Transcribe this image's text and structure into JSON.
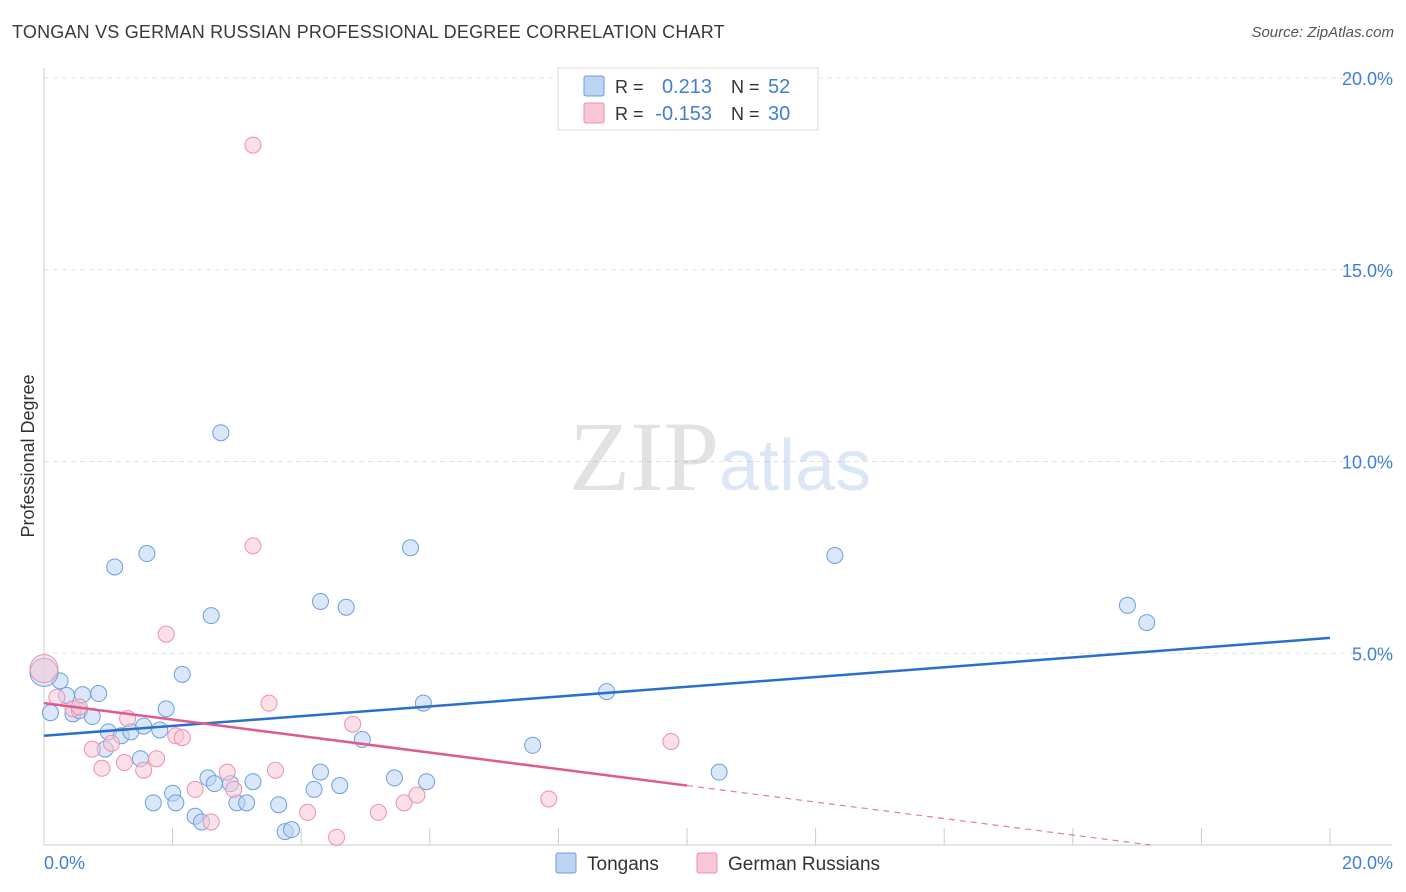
{
  "chart_data": {
    "type": "scatter",
    "title": "TONGAN VS GERMAN RUSSIAN PROFESSIONAL DEGREE CORRELATION CHART",
    "source": "Source: ZipAtlas.com",
    "xlabel": "",
    "ylabel": "Professional Degree",
    "xlim": [
      0,
      20
    ],
    "ylim": [
      0,
      20
    ],
    "x_tick_labels": [
      "0.0%",
      "20.0%"
    ],
    "y_ticks": [
      5,
      10,
      15,
      20
    ],
    "y_tick_labels": [
      "5.0%",
      "10.0%",
      "15.0%",
      "20.0%"
    ],
    "grid": true,
    "watermark": "ZIPatlas",
    "legend_stats": [
      {
        "r_label": "R =",
        "r_value": "0.213",
        "n_label": "N =",
        "n_value": "52"
      },
      {
        "r_label": "R =",
        "r_value": "-0.153",
        "n_label": "N =",
        "n_value": "30"
      }
    ],
    "series": [
      {
        "name": "Tongans",
        "color": "#6a9fe0",
        "fill": "#bcd3f2",
        "trend_color": "#2a6fcc",
        "trend": {
          "x0": 0,
          "y0": 2.85,
          "x1": 20,
          "y1": 5.4
        },
        "points": [
          [
            0.1,
            3.45
          ],
          [
            0.25,
            4.28
          ],
          [
            0.35,
            3.9
          ],
          [
            0.45,
            3.42
          ],
          [
            0.55,
            3.5
          ],
          [
            0.6,
            3.92
          ],
          [
            0.75,
            3.35
          ],
          [
            0.85,
            3.95
          ],
          [
            0.95,
            2.5
          ],
          [
            1.0,
            2.95
          ],
          [
            1.1,
            7.25
          ],
          [
            1.2,
            2.85
          ],
          [
            1.35,
            2.95
          ],
          [
            1.5,
            2.25
          ],
          [
            1.55,
            3.1
          ],
          [
            1.6,
            7.6
          ],
          [
            1.7,
            1.1
          ],
          [
            1.8,
            3.0
          ],
          [
            1.9,
            3.55
          ],
          [
            2.0,
            1.35
          ],
          [
            2.05,
            1.1
          ],
          [
            2.15,
            4.45
          ],
          [
            2.35,
            0.75
          ],
          [
            2.45,
            0.6
          ],
          [
            2.55,
            1.75
          ],
          [
            2.6,
            5.98
          ],
          [
            2.65,
            1.6
          ],
          [
            2.75,
            10.75
          ],
          [
            2.9,
            1.6
          ],
          [
            3.0,
            1.1
          ],
          [
            3.15,
            1.1
          ],
          [
            3.25,
            1.65
          ],
          [
            3.65,
            1.05
          ],
          [
            3.75,
            0.35
          ],
          [
            3.85,
            0.4
          ],
          [
            4.2,
            1.45
          ],
          [
            4.3,
            1.9
          ],
          [
            4.3,
            6.35
          ],
          [
            4.6,
            1.55
          ],
          [
            4.7,
            6.2
          ],
          [
            4.95,
            2.75
          ],
          [
            5.45,
            1.75
          ],
          [
            5.7,
            7.75
          ],
          [
            5.9,
            3.7
          ],
          [
            5.95,
            1.65
          ],
          [
            7.6,
            2.6
          ],
          [
            8.75,
            4.0
          ],
          [
            10.5,
            1.9
          ],
          [
            12.3,
            7.55
          ],
          [
            16.85,
            6.25
          ],
          [
            17.15,
            5.8
          ],
          [
            0.0,
            4.5
          ]
        ]
      },
      {
        "name": "German Russians",
        "color": "#ee8fae",
        "fill": "#f8c6d6",
        "trend_color": "#e05a8a",
        "trend": {
          "x0": 0,
          "y0": 3.7,
          "x1": 10,
          "y1": 1.55
        },
        "trend_dashed": {
          "x0": 10,
          "y0": 1.55,
          "x1": 20,
          "y1": -0.6
        },
        "points": [
          [
            0.0,
            4.6
          ],
          [
            0.2,
            3.85
          ],
          [
            0.45,
            3.55
          ],
          [
            0.55,
            3.6
          ],
          [
            0.75,
            2.5
          ],
          [
            0.9,
            2.0
          ],
          [
            1.05,
            2.65
          ],
          [
            1.25,
            2.15
          ],
          [
            1.3,
            3.3
          ],
          [
            1.55,
            1.95
          ],
          [
            1.75,
            2.25
          ],
          [
            1.9,
            5.5
          ],
          [
            2.05,
            2.85
          ],
          [
            2.15,
            2.8
          ],
          [
            2.35,
            1.45
          ],
          [
            2.6,
            0.6
          ],
          [
            2.85,
            1.9
          ],
          [
            2.95,
            1.45
          ],
          [
            3.25,
            18.25
          ],
          [
            3.25,
            7.8
          ],
          [
            3.5,
            3.7
          ],
          [
            3.6,
            1.95
          ],
          [
            4.1,
            0.85
          ],
          [
            4.55,
            0.2
          ],
          [
            5.2,
            0.85
          ],
          [
            5.6,
            1.1
          ],
          [
            5.8,
            1.3
          ],
          [
            7.85,
            1.2
          ],
          [
            9.75,
            2.7
          ],
          [
            4.8,
            3.15
          ]
        ]
      }
    ]
  }
}
